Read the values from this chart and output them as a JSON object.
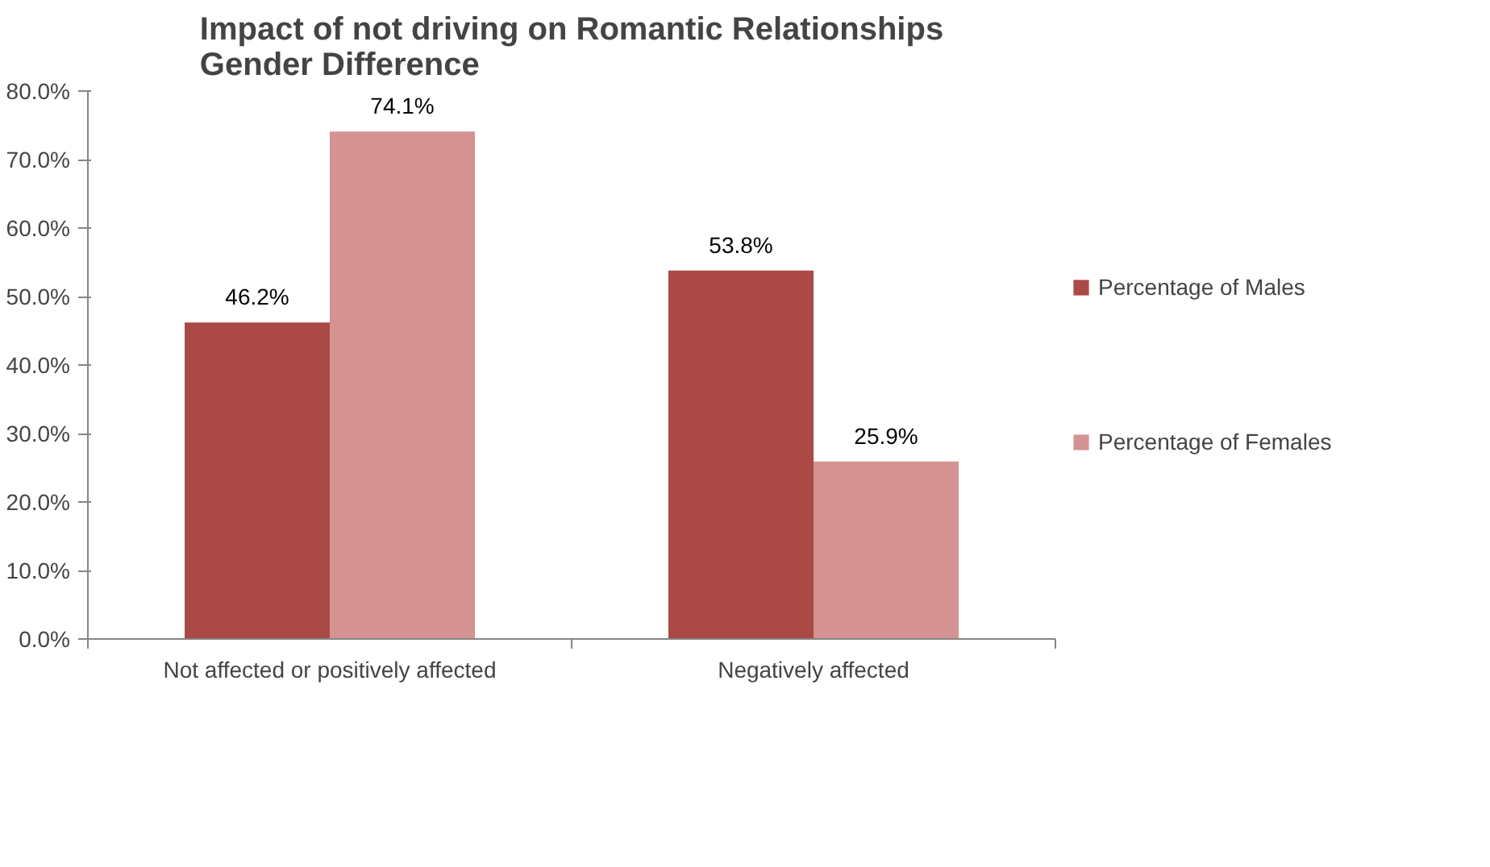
{
  "chart_data": {
    "type": "bar",
    "title": "Impact of not driving on Romantic Relationships\nGender Difference",
    "categories": [
      "Not affected or positively affected",
      "Negatively affected"
    ],
    "series": [
      {
        "name": "Percentage of Males",
        "color": "#aa4946",
        "values": [
          46.2,
          53.8
        ],
        "value_labels": [
          "46.2%",
          "53.8%"
        ]
      },
      {
        "name": "Percentage of Females",
        "color": "#d49392",
        "values": [
          74.1,
          25.9
        ],
        "value_labels": [
          "74.1%",
          "25.9%"
        ]
      }
    ],
    "ylim": [
      0,
      80
    ],
    "yticks": [
      {
        "value": 0,
        "label": "0.0%"
      },
      {
        "value": 10,
        "label": "10.0%"
      },
      {
        "value": 20,
        "label": "20.0%"
      },
      {
        "value": 30,
        "label": "30.0%"
      },
      {
        "value": 40,
        "label": "40.0%"
      },
      {
        "value": 50,
        "label": "50.0%"
      },
      {
        "value": 60,
        "label": "60.0%"
      },
      {
        "value": 70,
        "label": "70.0%"
      },
      {
        "value": 80,
        "label": "80.0%"
      }
    ],
    "grid": false,
    "legend": "right"
  }
}
